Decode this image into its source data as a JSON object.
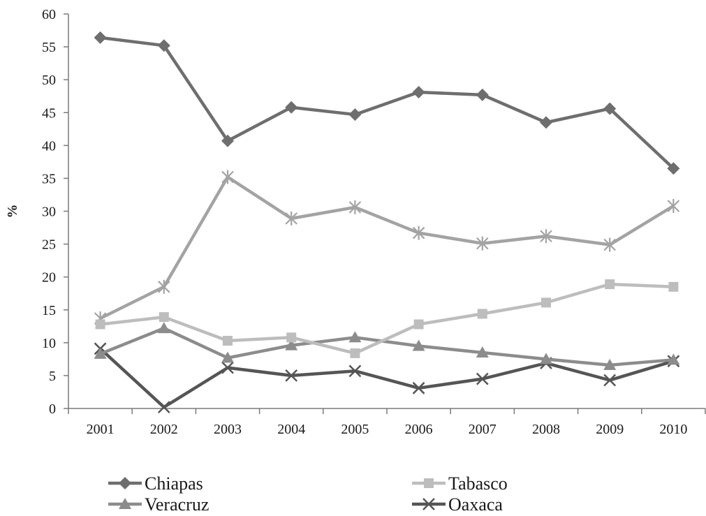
{
  "chart_data": {
    "type": "line",
    "title": "",
    "xlabel": "",
    "ylabel": "%",
    "categories": [
      "2001",
      "2002",
      "2003",
      "2004",
      "2005",
      "2006",
      "2007",
      "2008",
      "2009",
      "2010"
    ],
    "ylim": [
      0,
      60
    ],
    "yticks": [
      0,
      5,
      10,
      15,
      20,
      25,
      30,
      35,
      40,
      45,
      50,
      55,
      60
    ],
    "grid": false,
    "legend_position": "bottom",
    "series": [
      {
        "name": "Chiapas",
        "marker": "diamond",
        "color": "#6e6e6e",
        "values": [
          56.4,
          55.2,
          40.7,
          45.8,
          44.7,
          48.1,
          47.7,
          43.5,
          45.6,
          36.5
        ]
      },
      {
        "name": "Tabasco",
        "marker": "square",
        "color": "#bdbdbd",
        "values": [
          12.8,
          13.9,
          10.3,
          10.8,
          8.4,
          12.8,
          14.4,
          16.1,
          18.9,
          18.5
        ]
      },
      {
        "name": "Veracruz",
        "marker": "triangle",
        "color": "#8c8c8c",
        "values": [
          8.3,
          12.2,
          7.7,
          9.6,
          10.8,
          9.5,
          8.5,
          7.5,
          6.6,
          7.4
        ]
      },
      {
        "name": "Oaxaca",
        "marker": "x",
        "color": "#555555",
        "values": [
          9.1,
          0.2,
          6.2,
          5.0,
          5.7,
          3.1,
          4.5,
          6.9,
          4.3,
          7.2
        ]
      },
      {
        "name": "",
        "marker": "asterisk",
        "color": "#a3a3a3",
        "values": [
          13.7,
          18.5,
          35.2,
          28.9,
          30.6,
          26.7,
          25.1,
          26.2,
          24.9,
          30.8
        ]
      }
    ]
  }
}
